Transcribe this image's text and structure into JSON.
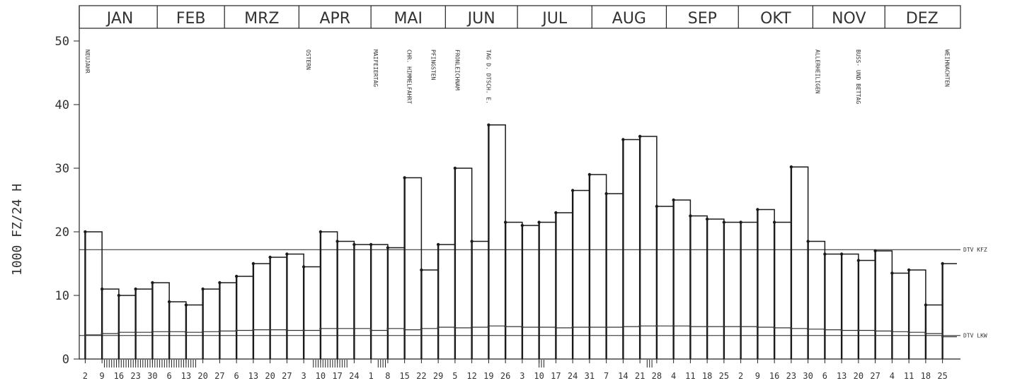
{
  "chart_data": {
    "type": "line",
    "title": "",
    "ylabel": "1000 FZ/24 H",
    "xlabel": "",
    "ylim": [
      0,
      52
    ],
    "yticks": [
      0,
      10,
      20,
      30,
      40,
      50
    ],
    "months": [
      "JAN",
      "FEB",
      "MRZ",
      "APR",
      "MAI",
      "JUN",
      "JUL",
      "AUG",
      "SEP",
      "OKT",
      "NOV",
      "DEZ"
    ],
    "month_start_days": [
      1,
      32,
      60,
      91,
      121,
      152,
      182,
      213,
      244,
      274,
      305,
      335
    ],
    "days_in_year": 365,
    "x_tick_days": [
      2,
      9,
      16,
      23,
      30,
      37,
      44,
      51,
      58,
      65,
      72,
      79,
      86,
      93,
      100,
      107,
      114,
      121,
      128,
      135,
      142,
      149,
      156,
      163,
      170,
      177,
      184,
      191,
      198,
      205,
      212,
      219,
      226,
      233,
      240,
      247,
      254,
      261,
      268,
      275,
      282,
      289,
      296,
      303,
      310,
      317,
      324,
      331,
      338,
      345,
      352,
      359
    ],
    "x_tick_labels": [
      "2",
      "9",
      "16",
      "23",
      "30",
      "6",
      "13",
      "20",
      "27",
      "6",
      "13",
      "20",
      "27",
      "3",
      "10",
      "17",
      "24",
      "1",
      "8",
      "15",
      "22",
      "29",
      "5",
      "12",
      "19",
      "26",
      "3",
      "10",
      "17",
      "24",
      "31",
      "7",
      "14",
      "21",
      "28",
      "4",
      "11",
      "18",
      "25",
      "2",
      "9",
      "16",
      "23",
      "30",
      "6",
      "13",
      "20",
      "27",
      "4",
      "11",
      "18",
      "25"
    ],
    "reference_lines": [
      {
        "name": "DTV KFZ",
        "value": 17.2
      },
      {
        "name": "DTV LKW",
        "value": 3.7
      }
    ],
    "holidays": [
      {
        "name": "NEUJAHR",
        "day": 1
      },
      {
        "name": "OSTERN",
        "day": 93
      },
      {
        "name": "MAIFEIERTAG",
        "day": 121
      },
      {
        "name": "CHR. HIMMELFAHRT",
        "day": 135
      },
      {
        "name": "PFINGSTEN",
        "day": 145
      },
      {
        "name": "FRONLEICHNAM",
        "day": 155
      },
      {
        "name": "TAG D. DTSCH. E.",
        "day": 168
      },
      {
        "name": "ALLERHEILIGEN",
        "day": 305
      },
      {
        "name": "BUSS- UND BETTAG",
        "day": 322
      },
      {
        "name": "WEIHNACHTEN",
        "day": 359
      }
    ],
    "school_holiday_marks": [
      [
        10,
        48
      ],
      [
        97,
        111
      ],
      [
        124,
        127
      ],
      [
        191,
        193
      ],
      [
        236,
        238
      ]
    ],
    "series": [
      {
        "name": "DTV KFZ",
        "x": [
          2,
          9,
          16,
          23,
          30,
          37,
          44,
          51,
          58,
          65,
          72,
          79,
          86,
          93,
          100,
          107,
          114,
          121,
          128,
          135,
          142,
          149,
          156,
          163,
          170,
          177,
          184,
          191,
          198,
          205,
          212,
          219,
          226,
          233,
          240,
          247,
          254,
          261,
          268,
          275,
          282,
          289,
          296,
          303,
          310,
          317,
          324,
          331,
          338,
          345,
          352,
          359
        ],
        "values": [
          20,
          11,
          10,
          11,
          12,
          9,
          8.5,
          11,
          12,
          13,
          15,
          16,
          16.5,
          14.5,
          20,
          18.5,
          18,
          18,
          17.5,
          28.5,
          14,
          18,
          30,
          18.5,
          36.8,
          21.5,
          21,
          21.5,
          23,
          26.5,
          29,
          26,
          34.5,
          35,
          24,
          25,
          22.5,
          22,
          21.5,
          21.5,
          23.5,
          21.5,
          30.2,
          18.5,
          16.5,
          16.5,
          15.5,
          17,
          13.5,
          14,
          8.5,
          15
        ]
      },
      {
        "name": "DTV LKW",
        "x": [
          2,
          9,
          16,
          23,
          30,
          37,
          44,
          51,
          58,
          65,
          72,
          79,
          86,
          93,
          100,
          107,
          114,
          121,
          128,
          135,
          142,
          149,
          156,
          163,
          170,
          177,
          184,
          191,
          198,
          205,
          212,
          219,
          226,
          233,
          240,
          247,
          254,
          261,
          268,
          275,
          282,
          289,
          296,
          303,
          310,
          317,
          324,
          331,
          338,
          345,
          352,
          359
        ],
        "values": [
          3.8,
          4,
          4.2,
          4.2,
          4.3,
          4.3,
          4.2,
          4.3,
          4.4,
          4.5,
          4.6,
          4.6,
          4.5,
          4.5,
          4.8,
          4.8,
          4.8,
          4.5,
          4.8,
          4.6,
          4.8,
          5,
          4.9,
          5,
          5.2,
          5.1,
          5,
          5,
          4.9,
          5,
          5,
          5,
          5.1,
          5.2,
          5.2,
          5.2,
          5.1,
          5.1,
          5.1,
          5.1,
          5,
          4.9,
          4.8,
          4.7,
          4.6,
          4.5,
          4.5,
          4.4,
          4.3,
          4.2,
          4,
          3.5
        ]
      }
    ]
  }
}
